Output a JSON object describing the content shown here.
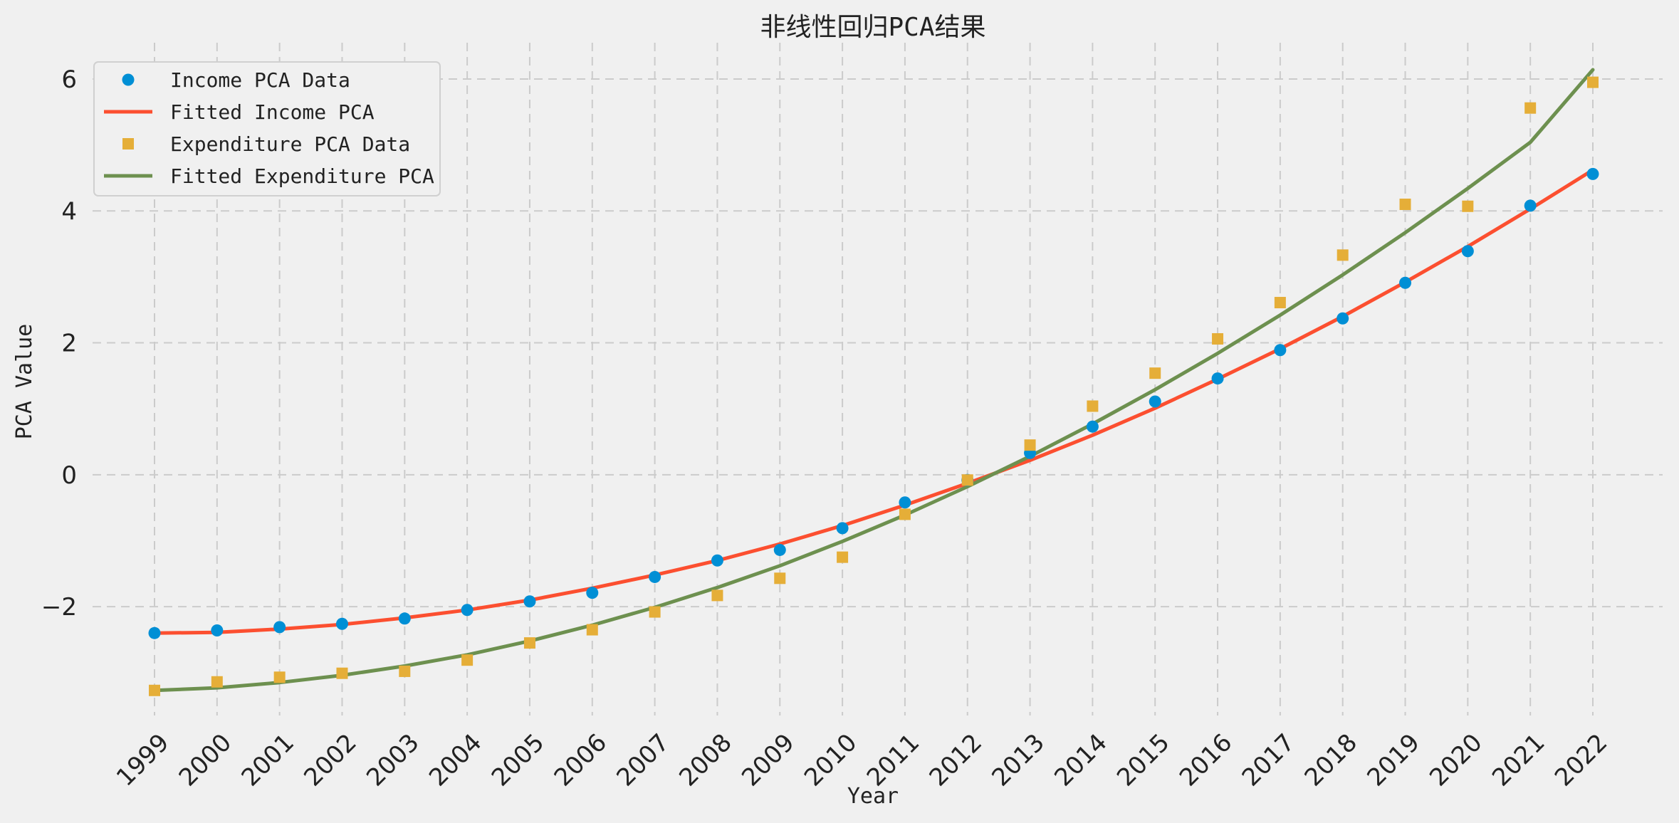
{
  "chart_data": {
    "type": "line",
    "title": "非线性回归PCA结果",
    "xlabel": "Year",
    "ylabel": "PCA Value",
    "categories": [
      "1999",
      "2000",
      "2001",
      "2002",
      "2003",
      "2004",
      "2005",
      "2006",
      "2007",
      "2008",
      "2009",
      "2010",
      "2011",
      "2012",
      "2013",
      "2014",
      "2015",
      "2016",
      "2017",
      "2018",
      "2019",
      "2020",
      "2021",
      "2022"
    ],
    "y_ticks": [
      -2,
      0,
      2,
      4,
      6
    ],
    "ylim": [
      -3.65,
      6.55
    ],
    "grid": true,
    "legend_position": "top-left",
    "series": [
      {
        "name": "Income PCA Data",
        "kind": "scatter",
        "marker": "circle",
        "color": "#008fd5",
        "values": [
          -2.4,
          -2.36,
          -2.31,
          -2.26,
          -2.18,
          -2.05,
          -1.92,
          -1.79,
          -1.55,
          -1.3,
          -1.14,
          -0.81,
          -0.42,
          -0.08,
          0.33,
          0.73,
          1.11,
          1.46,
          1.89,
          2.37,
          2.91,
          3.39,
          4.08,
          4.56
        ]
      },
      {
        "name": "Fitted Income PCA",
        "kind": "line",
        "color": "#fc4f30",
        "values": [
          -2.4,
          -2.39,
          -2.34,
          -2.27,
          -2.17,
          -2.05,
          -1.9,
          -1.72,
          -1.52,
          -1.3,
          -1.05,
          -0.77,
          -0.46,
          -0.13,
          0.22,
          0.6,
          1.01,
          1.45,
          1.91,
          2.4,
          2.92,
          3.46,
          4.03,
          4.62
        ]
      },
      {
        "name": "Expenditure PCA Data",
        "kind": "scatter",
        "marker": "square",
        "color": "#e5ae38",
        "values": [
          -3.27,
          -3.14,
          -3.07,
          -3.01,
          -2.98,
          -2.81,
          -2.55,
          -2.35,
          -2.08,
          -1.83,
          -1.57,
          -1.25,
          -0.6,
          -0.08,
          0.45,
          1.04,
          1.54,
          2.06,
          2.61,
          3.33,
          4.1,
          4.07,
          5.56,
          5.95
        ]
      },
      {
        "name": "Fitted Expenditure PCA",
        "kind": "line",
        "color": "#6d904f",
        "values": [
          -3.27,
          -3.23,
          -3.15,
          -3.04,
          -2.9,
          -2.73,
          -2.52,
          -2.28,
          -2.01,
          -1.71,
          -1.38,
          -1.01,
          -0.61,
          -0.18,
          0.28,
          0.77,
          1.29,
          1.84,
          2.42,
          3.03,
          3.67,
          4.34,
          5.04,
          6.14
        ]
      }
    ]
  }
}
